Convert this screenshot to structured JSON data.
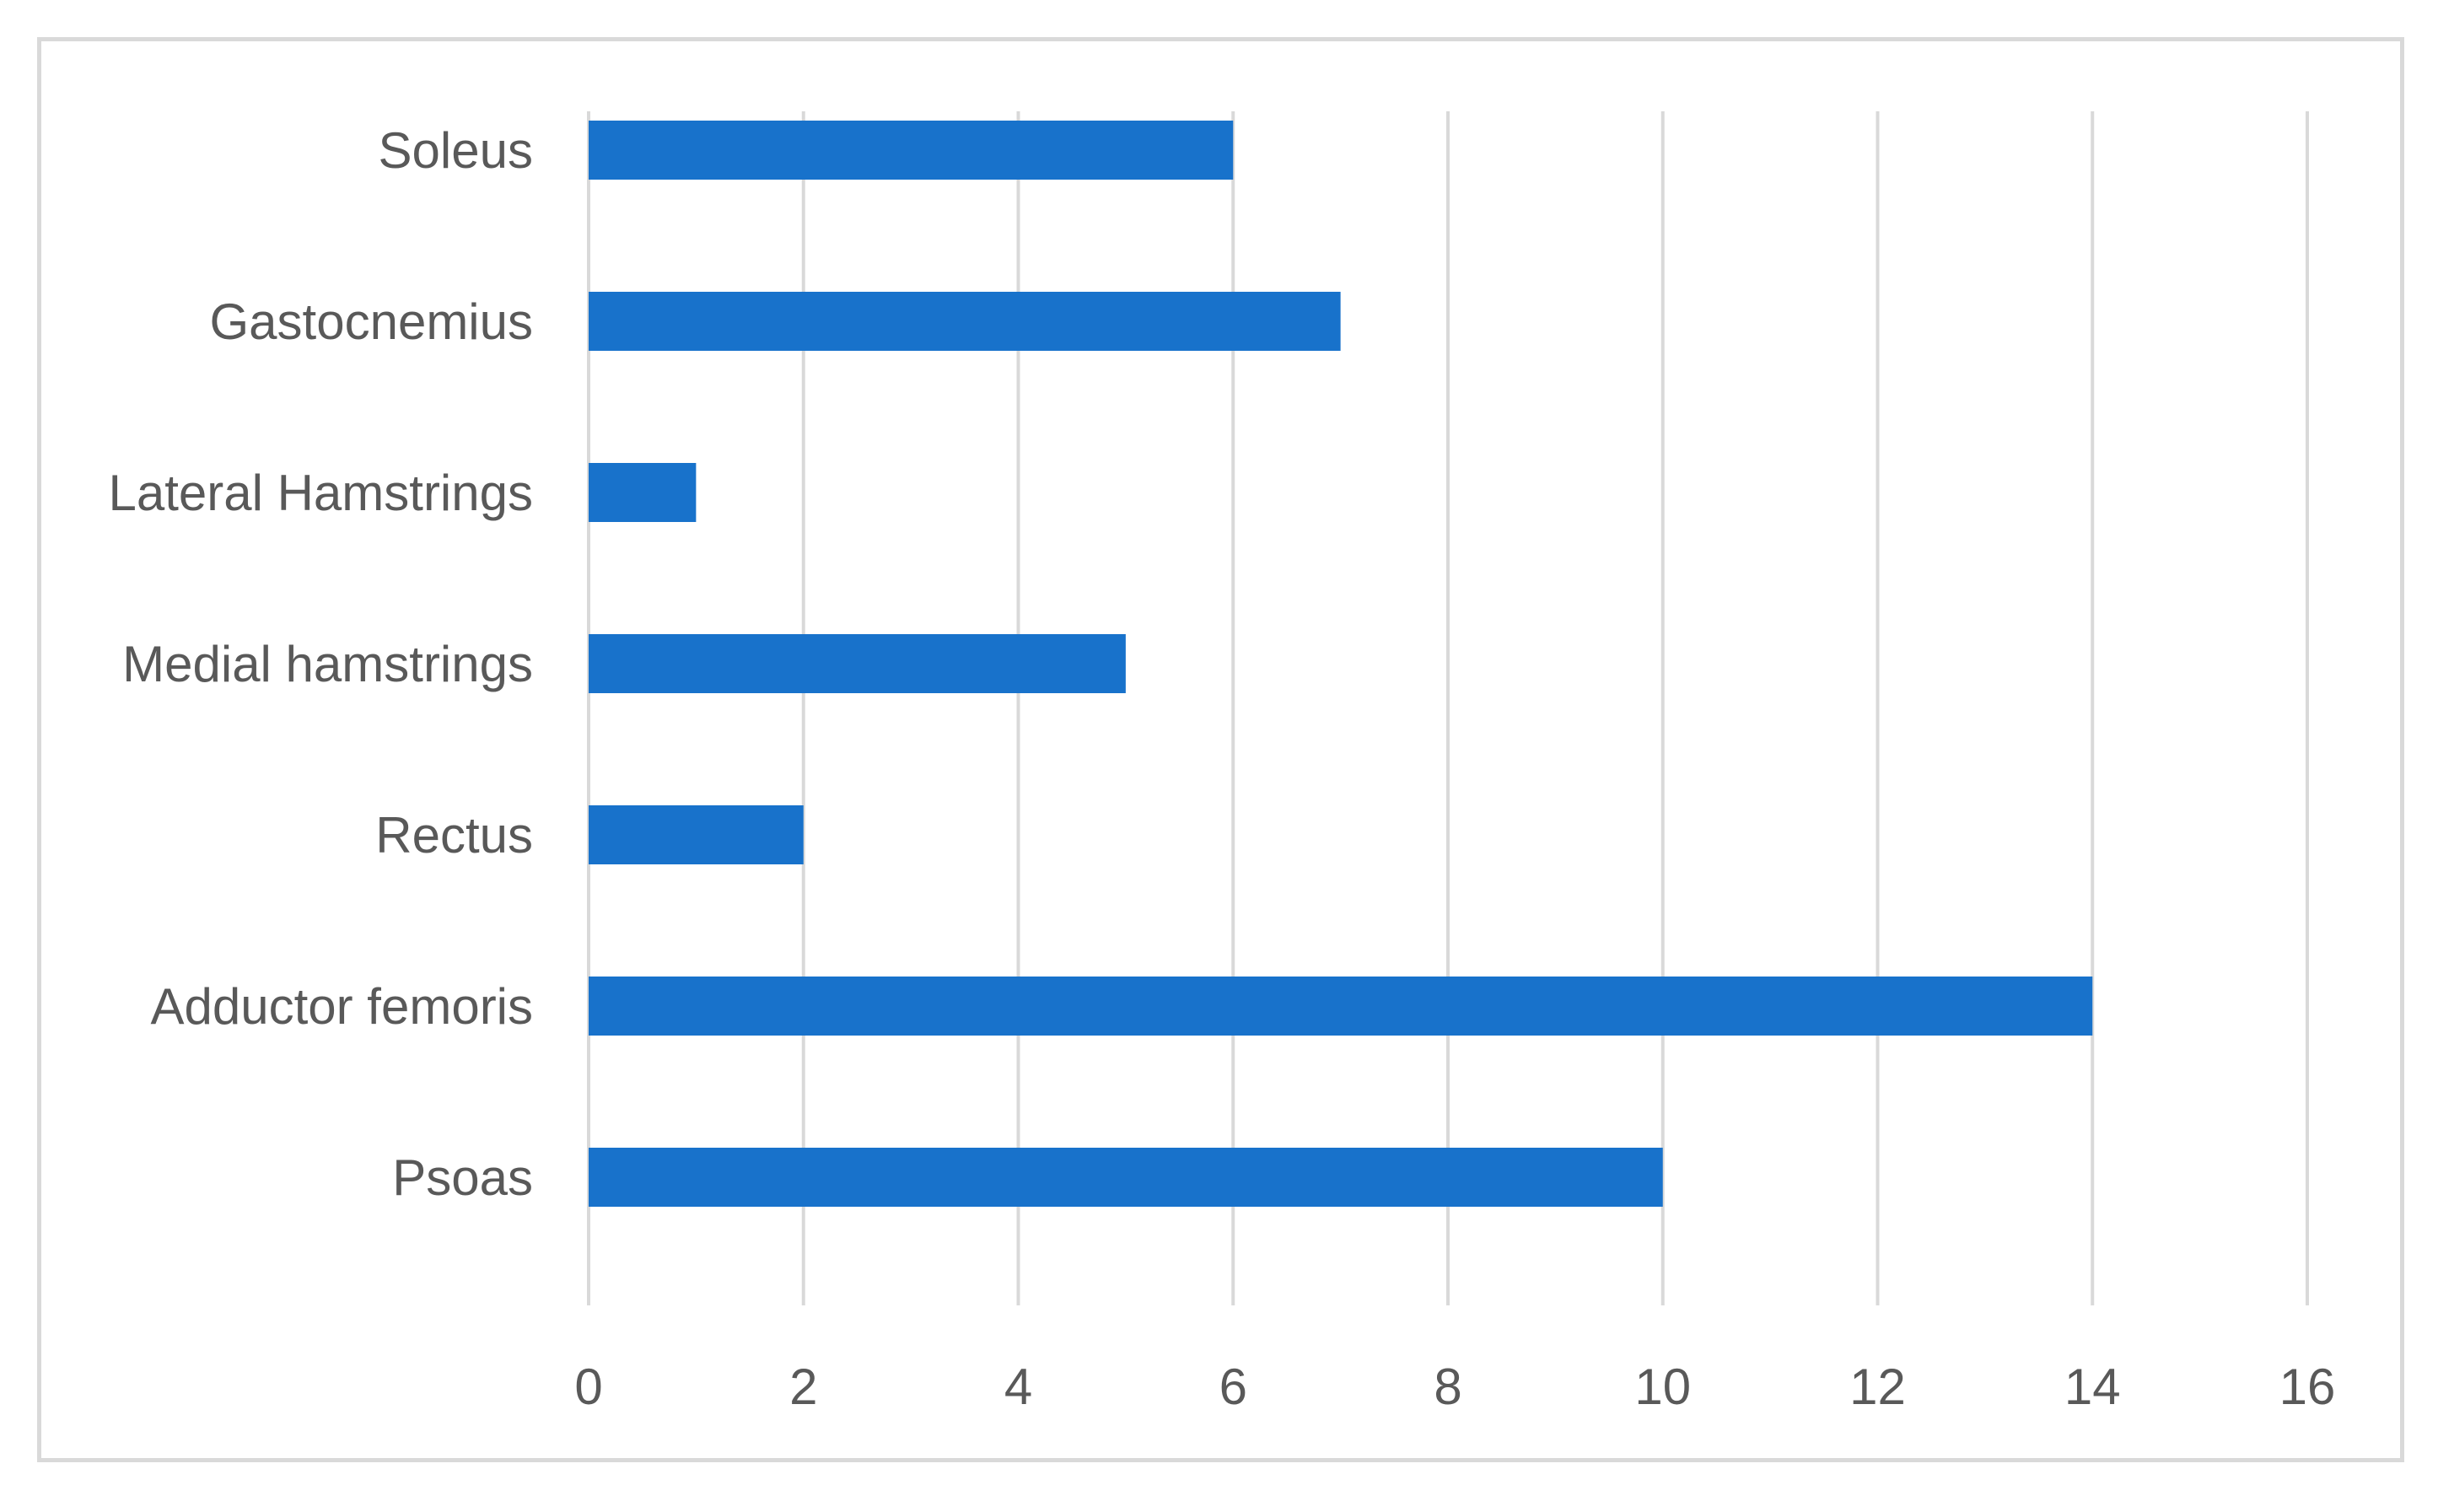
{
  "chart_data": {
    "type": "bar",
    "orientation": "horizontal",
    "title": "",
    "xlabel": "",
    "ylabel": "",
    "categories": [
      "Soleus",
      "Gastocnemius",
      "Lateral Hamstrings",
      "Medial hamstrings",
      "Rectus",
      "Adductor femoris",
      "Psoas"
    ],
    "values": [
      6,
      7,
      1,
      5,
      2,
      14,
      10
    ],
    "xlim": [
      0,
      16
    ],
    "x_ticks": [
      0,
      2,
      4,
      6,
      8,
      10,
      12,
      14,
      16
    ],
    "grid": "vertical",
    "legend": "none",
    "bar_color": "#1872CB",
    "grid_color": "#D9D9D9",
    "text_color": "#595959"
  }
}
